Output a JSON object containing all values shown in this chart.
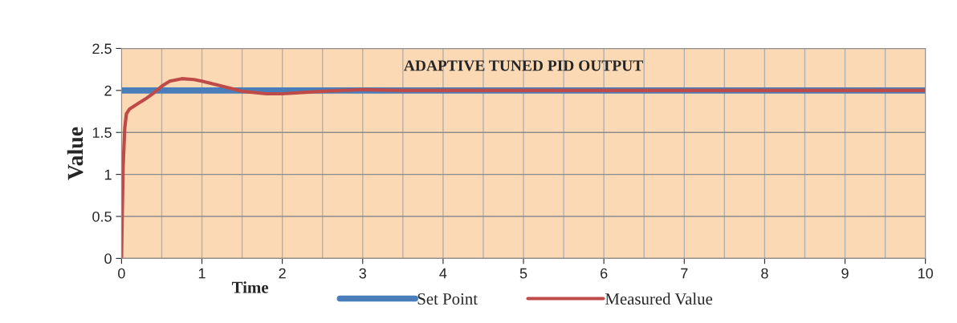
{
  "chart_data": {
    "type": "line",
    "title": "ADAPTIVE TUNED PID OUTPUT",
    "xlabel": "Time",
    "ylabel": "Value",
    "series": [
      {
        "name": "Set Point",
        "color": "#4a7ebb",
        "x": [
          0,
          10
        ],
        "values": [
          2,
          2
        ]
      },
      {
        "name": "Measured Value",
        "color": "#be4b48",
        "x": [
          0,
          0.01,
          0.02,
          0.04,
          0.06,
          0.1,
          0.2,
          0.3,
          0.4,
          0.5,
          0.6,
          0.75,
          0.9,
          1.0,
          1.25,
          1.5,
          1.8,
          2.0,
          2.5,
          3.0,
          3.5,
          4.0,
          5.0,
          10.0
        ],
        "values": [
          0,
          0.6,
          1.1,
          1.55,
          1.72,
          1.78,
          1.84,
          1.9,
          1.97,
          2.05,
          2.11,
          2.14,
          2.13,
          2.11,
          2.05,
          1.99,
          1.96,
          1.96,
          1.99,
          2.01,
          2.0,
          2.0,
          2.0,
          2.0
        ]
      }
    ],
    "xlim": [
      0,
      10
    ],
    "xticks": [
      0,
      1,
      2,
      3,
      4,
      5,
      6,
      7,
      8,
      9,
      10
    ],
    "ylim": [
      0,
      2.5
    ],
    "yticks": [
      0,
      0.5,
      1,
      1.5,
      2,
      2.5
    ],
    "grid": true,
    "legend": "bottom",
    "line_style": "solid",
    "marker": "none"
  }
}
